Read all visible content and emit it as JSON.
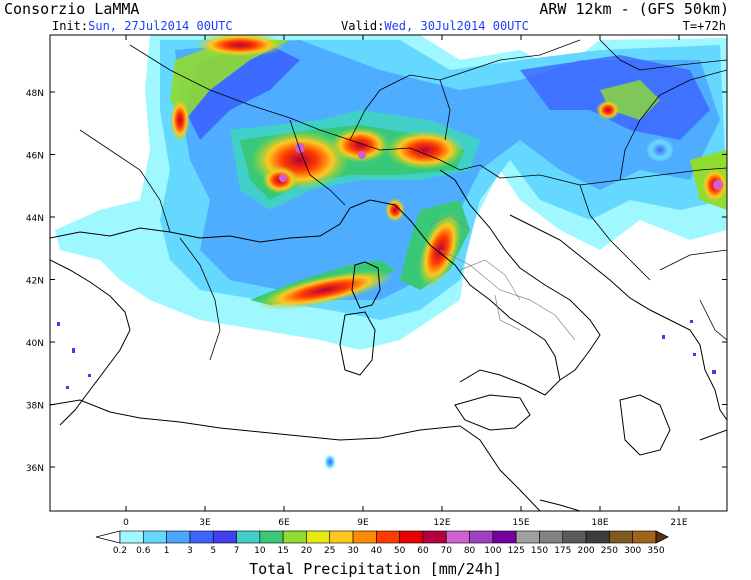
{
  "header": {
    "title_left": "Consorzio LaMMA",
    "title_right": "ARW 12km - (GFS 50km)",
    "init_label": "Init:",
    "init_value": "Sun, 27Jul2014 00UTC",
    "valid_label": "Valid:",
    "valid_value": "Wed, 30Jul2014 00UTC",
    "timestep": "T=+72h"
  },
  "map": {
    "lat_labels": [
      "48N",
      "46N",
      "44N",
      "42N",
      "40N",
      "38N",
      "36N"
    ],
    "lon_labels": [
      "0",
      "3E",
      "6E",
      "9E",
      "12E",
      "15E",
      "18E",
      "21E"
    ],
    "lat_values": [
      48,
      46,
      44,
      42,
      40,
      38,
      36
    ],
    "lon_values": [
      0,
      3,
      6,
      9,
      12,
      15,
      18,
      21
    ]
  },
  "colorbar": {
    "title": "Total Precipitation [mm/24h]",
    "values": [
      "0.2",
      "0.6",
      "1",
      "3",
      "5",
      "7",
      "10",
      "15",
      "20",
      "25",
      "30",
      "40",
      "50",
      "60",
      "70",
      "80",
      "100",
      "125",
      "150",
      "175",
      "200",
      "250",
      "300",
      "350"
    ],
    "colors": [
      "#ffffff",
      "#9ff7ff",
      "#64d8ff",
      "#4aa6ff",
      "#3c64ff",
      "#4040f0",
      "#40d0c8",
      "#38c878",
      "#90dc30",
      "#e8e810",
      "#ffc820",
      "#ff8c00",
      "#ff3c00",
      "#e60000",
      "#b40040",
      "#d060d0",
      "#a040c0",
      "#7800a0",
      "#a0a0a0",
      "#828282",
      "#5a5a5a",
      "#3c3c3c",
      "#7d5a1e",
      "#a06418",
      "#5a3210"
    ]
  }
}
